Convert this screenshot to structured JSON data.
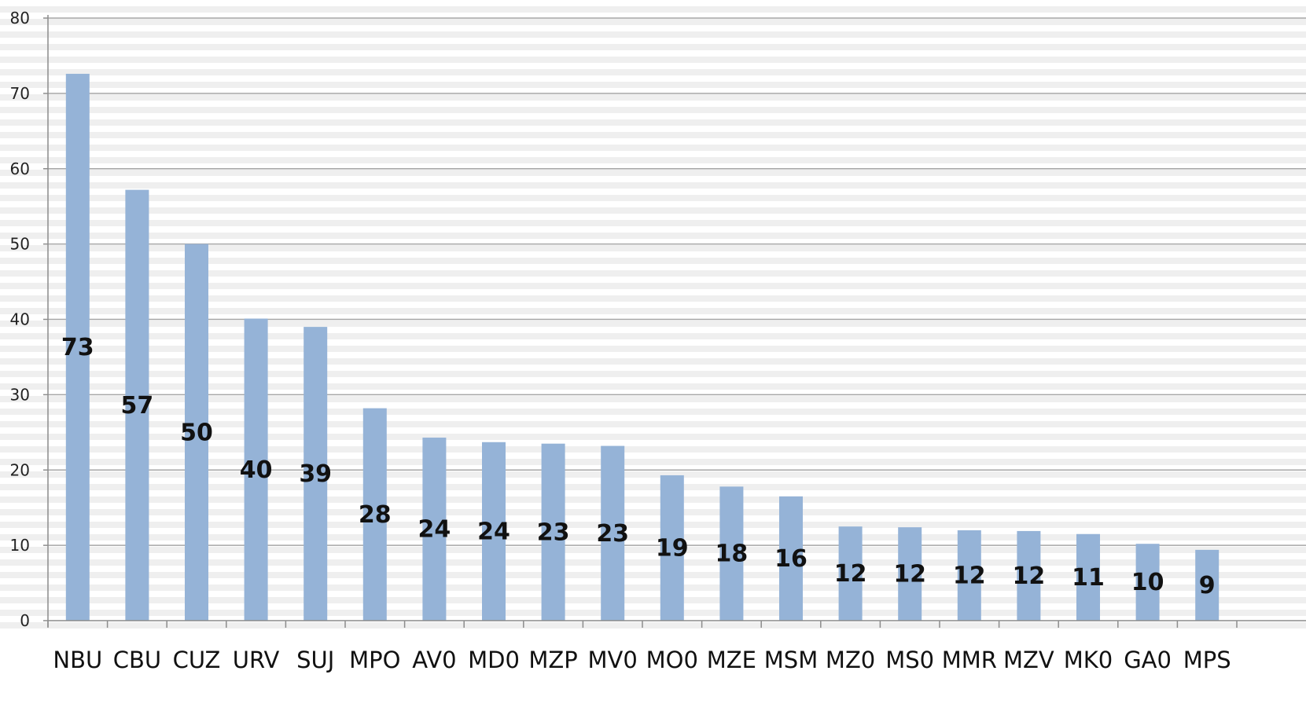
{
  "chart_data": {
    "type": "bar",
    "title": "",
    "xlabel": "",
    "ylabel": "",
    "ylim": [
      0,
      80
    ],
    "yticks": [
      0,
      10,
      20,
      30,
      40,
      50,
      60,
      70,
      80
    ],
    "grid": true,
    "legend": "none",
    "categories": [
      "NBU",
      "CBU",
      "CUZ",
      "URV",
      "SUJ",
      "MPO",
      "AV0",
      "MD0",
      "MZP",
      "MV0",
      "MO0",
      "MZE",
      "MSM",
      "MZ0",
      "MS0",
      "MMR",
      "MZV",
      "MK0",
      "GA0",
      "MPS"
    ],
    "values": [
      72.6,
      57.2,
      50.0,
      40.1,
      39.0,
      28.2,
      24.3,
      23.7,
      23.5,
      23.2,
      19.3,
      17.8,
      16.5,
      12.5,
      12.4,
      12.0,
      11.9,
      11.5,
      10.2,
      9.4
    ],
    "data_labels": [
      "73",
      "57",
      "50",
      "40",
      "39",
      "28",
      "24",
      "24",
      "23",
      "23",
      "19",
      "18",
      "16",
      "12",
      "12",
      "12",
      "12",
      "11",
      "10",
      "9"
    ],
    "colors": {
      "bar": "#95b3d7",
      "gridline": "#a6a6a6",
      "axis": "#8c8c8c",
      "stripe": "#efefef"
    }
  }
}
